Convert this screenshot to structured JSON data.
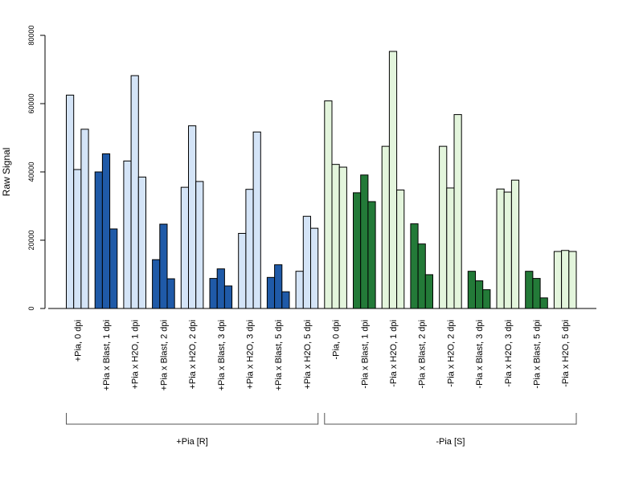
{
  "chart_data": {
    "type": "bar",
    "ylabel": "Raw Signal",
    "ylim": [
      0,
      80000
    ],
    "yticks": [
      0,
      20000,
      40000,
      60000,
      80000
    ],
    "colors": {
      "light_blue": "#d4e4f7",
      "dark_blue": "#1f5aa8",
      "light_green": "#e3f5dc",
      "dark_green": "#237a38"
    },
    "categories": [
      {
        "label": "+Pia, 0 dpi",
        "color": "light_blue",
        "values": [
          62500,
          40700,
          52500
        ]
      },
      {
        "label": "+Pia x Blast, 1 dpi",
        "color": "dark_blue",
        "values": [
          40000,
          45300,
          23300
        ]
      },
      {
        "label": "+Pia x H2O, 1 dpi",
        "color": "light_blue",
        "values": [
          43200,
          68200,
          38500
        ]
      },
      {
        "label": "+Pia x Blast, 2 dpi",
        "color": "dark_blue",
        "values": [
          14300,
          24700,
          8700
        ]
      },
      {
        "label": "+Pia x H2O, 2 dpi",
        "color": "light_blue",
        "values": [
          35500,
          53500,
          37200
        ]
      },
      {
        "label": "+Pia x Blast, 3 dpi",
        "color": "dark_blue",
        "values": [
          8800,
          11600,
          6600
        ]
      },
      {
        "label": "+Pia x H2O, 3 dpi",
        "color": "light_blue",
        "values": [
          22000,
          34900,
          51700
        ]
      },
      {
        "label": "+Pia x Blast, 5 dpi",
        "color": "dark_blue",
        "values": [
          9100,
          12800,
          4900
        ]
      },
      {
        "label": "+Pia x H2O, 5 dpi",
        "color": "light_blue",
        "values": [
          10900,
          27000,
          23500
        ]
      },
      {
        "label": "-Pia, 0 dpi",
        "color": "light_green",
        "values": [
          60800,
          42200,
          41400
        ]
      },
      {
        "label": "-Pia x Blast, 1 dpi",
        "color": "dark_green",
        "values": [
          33900,
          39100,
          31300
        ]
      },
      {
        "label": "-Pia x H2O, 1 dpi",
        "color": "light_green",
        "values": [
          47500,
          75300,
          34700
        ]
      },
      {
        "label": "-Pia x Blast, 2 dpi",
        "color": "dark_green",
        "values": [
          24800,
          18900,
          9900
        ]
      },
      {
        "label": "-Pia x H2O, 2 dpi",
        "color": "light_green",
        "values": [
          47500,
          35300,
          56800
        ]
      },
      {
        "label": "-Pia x Blast, 3 dpi",
        "color": "dark_green",
        "values": [
          10900,
          8100,
          5500
        ]
      },
      {
        "label": "-Pia x H2O, 3 dpi",
        "color": "light_green",
        "values": [
          35000,
          34100,
          37600
        ]
      },
      {
        "label": "-Pia x Blast, 5 dpi",
        "color": "dark_green",
        "values": [
          10900,
          8800,
          3100
        ]
      },
      {
        "label": "-Pia x H2O, 5 dpi",
        "color": "light_green",
        "values": [
          16700,
          17000,
          16700
        ]
      }
    ],
    "groups": [
      {
        "label": "+Pia [R]",
        "first": 0,
        "last": 8
      },
      {
        "label": "-Pia [S]",
        "first": 9,
        "last": 17
      }
    ]
  }
}
